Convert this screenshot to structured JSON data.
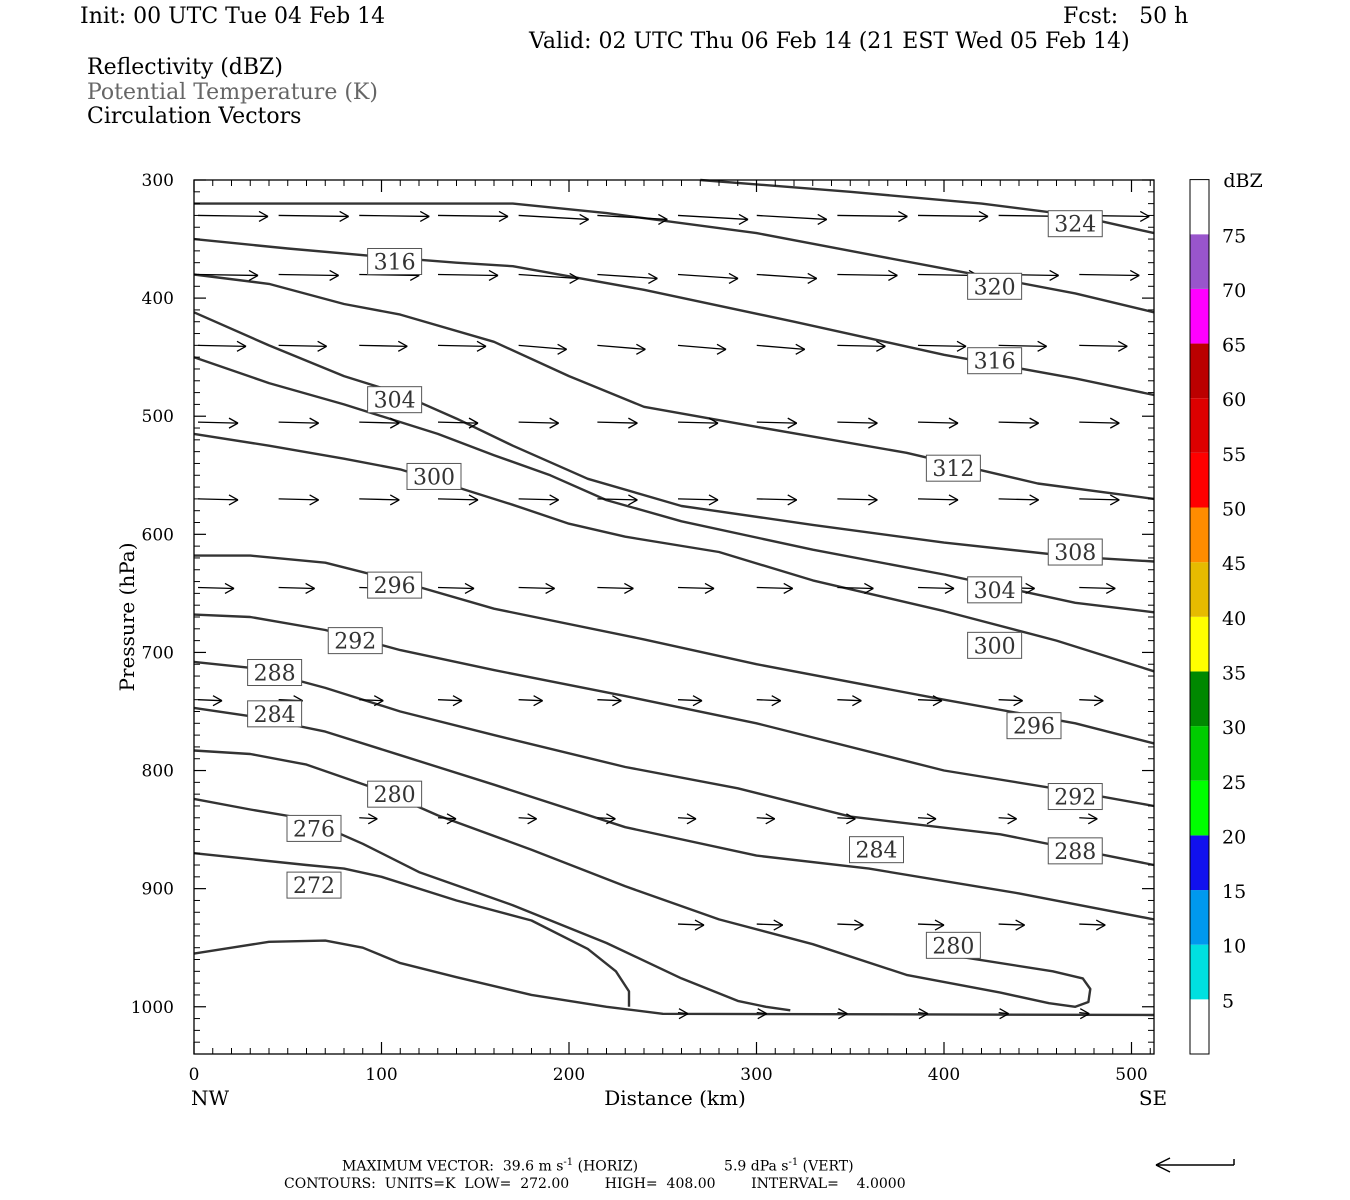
{
  "header": {
    "init": "Init: 00 UTC Tue 04 Feb 14",
    "fcst": "Fcst:   50 h",
    "valid": "Valid: 02 UTC Thu 06 Feb 14 (21 EST Wed 05 Feb 14)",
    "field1": "Reflectivity (dBZ)",
    "field2": "Potential Temperature (K)",
    "field3": "Circulation Vectors"
  },
  "footer": {
    "line1_a": "MAXIMUM VECTOR:  39.6 m s",
    "line1_b": "-1",
    "line1_c": " (HORIZ)",
    "line1_d": "5.9 dPa s",
    "line1_e": "-1",
    "line1_f": " (VERT)",
    "line2": "CONTOURS:  UNITS=K  LOW=  272.00        HIGH=  408.00        INTERVAL=    4.0000"
  },
  "chart_data": {
    "type": "cross-section",
    "xlabel": "Distance (km)",
    "ylabel": "Pressure (hPa)",
    "x_left_label": "NW",
    "x_right_label": "SE",
    "xlim": [
      0,
      512
    ],
    "ylim": [
      1040,
      300
    ],
    "x_ticks": [
      0,
      100,
      200,
      300,
      400,
      500
    ],
    "y_ticks": [
      300,
      400,
      500,
      600,
      700,
      800,
      900,
      1000
    ],
    "colorbar": {
      "title": "dBZ",
      "levels": [
        5,
        10,
        15,
        20,
        25,
        30,
        35,
        40,
        45,
        50,
        55,
        60,
        65,
        70,
        75
      ],
      "colors": [
        "#ffffff",
        "#00e0e0",
        "#0099ee",
        "#1111ee",
        "#00ff00",
        "#00cc00",
        "#008800",
        "#ffff00",
        "#e6bb00",
        "#ff8c00",
        "#ff0000",
        "#dd0000",
        "#bb0000",
        "#ff00ff",
        "#9955cc",
        "#ffffff"
      ]
    },
    "contour_color": "#333333",
    "theta_contours": [
      {
        "label": "324",
        "points": [
          [
            270,
            300
          ],
          [
            350,
            310
          ],
          [
            420,
            320
          ],
          [
            470,
            330
          ],
          [
            512,
            345
          ]
        ],
        "label_at": [
          470,
          337
        ]
      },
      {
        "label": "320",
        "points": [
          [
            0,
            320
          ],
          [
            70,
            320
          ],
          [
            170,
            320
          ],
          [
            220,
            328
          ],
          [
            300,
            345
          ],
          [
            400,
            375
          ],
          [
            470,
            396
          ],
          [
            512,
            412
          ]
        ],
        "label_at": [
          427,
          390
        ]
      },
      {
        "label": "316",
        "points": [
          [
            0,
            350
          ],
          [
            50,
            358
          ],
          [
            100,
            365
          ],
          [
            140,
            370
          ],
          [
            170,
            373
          ],
          [
            240,
            393
          ],
          [
            320,
            420
          ],
          [
            400,
            448
          ],
          [
            470,
            468
          ],
          [
            512,
            482
          ]
        ],
        "label_at": [
          107,
          369
        ]
      },
      {
        "label": "316",
        "points": [],
        "label_at": [
          427,
          453
        ]
      },
      {
        "label": "312",
        "points": [
          [
            0,
            380
          ],
          [
            40,
            388
          ],
          [
            80,
            405
          ],
          [
            110,
            414
          ],
          [
            160,
            437
          ],
          [
            200,
            466
          ],
          [
            240,
            492
          ],
          [
            300,
            509
          ],
          [
            380,
            531
          ],
          [
            450,
            557
          ],
          [
            512,
            570
          ]
        ],
        "label_at": [
          405,
          544
        ]
      },
      {
        "label": "308",
        "points": [
          [
            0,
            412
          ],
          [
            40,
            440
          ],
          [
            80,
            466
          ],
          [
            110,
            481
          ],
          [
            140,
            502
          ],
          [
            170,
            525
          ],
          [
            210,
            553
          ],
          [
            260,
            576
          ],
          [
            330,
            592
          ],
          [
            400,
            607
          ],
          [
            470,
            619
          ],
          [
            512,
            623
          ]
        ],
        "label_at": [
          470,
          615
        ]
      },
      {
        "label": "304",
        "points": [
          [
            0,
            450
          ],
          [
            40,
            472
          ],
          [
            80,
            490
          ],
          [
            130,
            515
          ],
          [
            160,
            533
          ],
          [
            190,
            550
          ],
          [
            220,
            571
          ],
          [
            260,
            589
          ],
          [
            330,
            613
          ],
          [
            400,
            634
          ],
          [
            470,
            658
          ],
          [
            512,
            666
          ]
        ],
        "label_at": [
          107,
          486
        ]
      },
      {
        "label": "304",
        "points": [],
        "label_at": [
          427,
          647
        ]
      },
      {
        "label": "300",
        "points": [
          [
            0,
            515
          ],
          [
            40,
            525
          ],
          [
            80,
            536
          ],
          [
            110,
            545
          ],
          [
            150,
            565
          ],
          [
            170,
            575
          ],
          [
            200,
            591
          ],
          [
            230,
            602
          ],
          [
            280,
            615
          ],
          [
            330,
            639
          ],
          [
            400,
            665
          ],
          [
            460,
            690
          ],
          [
            512,
            716
          ]
        ],
        "label_at": [
          128,
          551
        ]
      },
      {
        "label": "300",
        "points": [],
        "label_at": [
          427,
          694
        ]
      },
      {
        "label": "296",
        "points": [
          [
            0,
            618
          ],
          [
            30,
            618
          ],
          [
            70,
            624
          ],
          [
            110,
            640
          ],
          [
            160,
            663
          ],
          [
            240,
            689
          ],
          [
            300,
            710
          ],
          [
            400,
            740
          ],
          [
            470,
            760
          ],
          [
            512,
            777
          ]
        ],
        "label_at": [
          107,
          643
        ]
      },
      {
        "label": "296",
        "points": [],
        "label_at": [
          448,
          762
        ]
      },
      {
        "label": "292",
        "points": [
          [
            0,
            668
          ],
          [
            30,
            670
          ],
          [
            70,
            681
          ],
          [
            110,
            698
          ],
          [
            160,
            715
          ],
          [
            230,
            737
          ],
          [
            300,
            760
          ],
          [
            400,
            800
          ],
          [
            470,
            818
          ],
          [
            512,
            830
          ]
        ],
        "label_at": [
          86,
          690
        ]
      },
      {
        "label": "292",
        "points": [],
        "label_at": [
          470,
          822
        ]
      },
      {
        "label": "288",
        "points": [
          [
            0,
            708
          ],
          [
            30,
            713
          ],
          [
            70,
            730
          ],
          [
            110,
            750
          ],
          [
            160,
            770
          ],
          [
            230,
            797
          ],
          [
            290,
            815
          ],
          [
            350,
            839
          ],
          [
            430,
            854
          ],
          [
            512,
            880
          ]
        ],
        "label_at": [
          43,
          717
        ]
      },
      {
        "label": "288",
        "points": [],
        "label_at": [
          470,
          868
        ]
      },
      {
        "label": "284",
        "points": [
          [
            0,
            747
          ],
          [
            30,
            754
          ],
          [
            70,
            767
          ],
          [
            110,
            787
          ],
          [
            160,
            812
          ],
          [
            230,
            848
          ],
          [
            300,
            872
          ],
          [
            360,
            883
          ],
          [
            440,
            904
          ],
          [
            512,
            926
          ]
        ],
        "label_at": [
          43,
          752
        ]
      },
      {
        "label": "284",
        "points": [],
        "label_at": [
          364,
          867
        ]
      },
      {
        "label": "280",
        "points": [
          [
            0,
            783
          ],
          [
            30,
            786
          ],
          [
            60,
            795
          ],
          [
            100,
            817
          ],
          [
            130,
            838
          ],
          [
            180,
            867
          ],
          [
            230,
            898
          ],
          [
            280,
            926
          ],
          [
            330,
            947
          ],
          [
            380,
            973
          ],
          [
            430,
            988
          ],
          [
            456,
            997
          ],
          [
            470,
            1000
          ],
          [
            477,
            996
          ],
          [
            478,
            985
          ],
          [
            474,
            976
          ],
          [
            458,
            970
          ],
          [
            410,
            958
          ]
        ],
        "label_at": [
          107,
          820
        ]
      },
      {
        "label": "280",
        "points": [],
        "label_at": [
          405,
          948
        ]
      },
      {
        "label": "276",
        "points": [
          [
            0,
            824
          ],
          [
            30,
            833
          ],
          [
            60,
            841
          ],
          [
            90,
            862
          ],
          [
            120,
            886
          ],
          [
            170,
            914
          ],
          [
            220,
            946
          ],
          [
            260,
            976
          ],
          [
            290,
            995
          ],
          [
            305,
            1000
          ],
          [
            318,
            1003
          ]
        ],
        "label_at": [
          64,
          849
        ]
      },
      {
        "label": "272",
        "points": [
          [
            0,
            870
          ],
          [
            30,
            875
          ],
          [
            60,
            880
          ],
          [
            80,
            883
          ],
          [
            100,
            890
          ],
          [
            140,
            910
          ],
          [
            180,
            927
          ],
          [
            210,
            951
          ],
          [
            225,
            970
          ],
          [
            232,
            987
          ],
          [
            232,
            1000
          ]
        ],
        "label_at": [
          64,
          897
        ]
      },
      {
        "label": "",
        "points": [
          [
            0,
            955
          ],
          [
            20,
            950
          ],
          [
            40,
            945
          ],
          [
            70,
            944
          ],
          [
            90,
            950
          ],
          [
            110,
            963
          ],
          [
            140,
            975
          ],
          [
            180,
            990
          ],
          [
            220,
            1000
          ],
          [
            250,
            1006
          ],
          [
            512,
            1007
          ]
        ],
        "label_at": null
      }
    ]
  }
}
